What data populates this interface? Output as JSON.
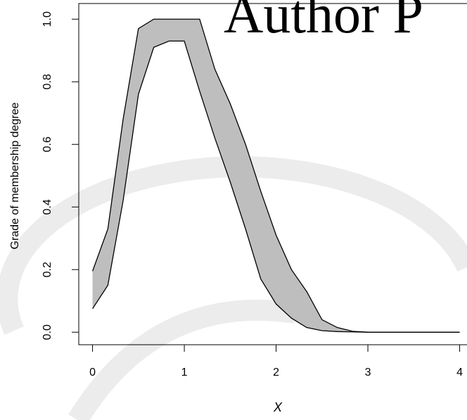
{
  "chart_data": {
    "type": "band",
    "watermark": "Author P",
    "xlabel": "X",
    "ylabel": "Grade of membership degree",
    "x": [
      0,
      0.167,
      0.333,
      0.5,
      0.667,
      0.833,
      1,
      1.167,
      1.333,
      1.5,
      1.667,
      1.833,
      2,
      2.167,
      2.333,
      2.5,
      2.667,
      2.833,
      3,
      3.167,
      3.333,
      3.5,
      3.667,
      3.833,
      4
    ],
    "series": [
      {
        "color": "#000000",
        "values": [
          0.195,
          0.33,
          0.68,
          0.97,
          1.0,
          1.0,
          1.0,
          1.0,
          0.84,
          0.73,
          0.6,
          0.45,
          0.31,
          0.2,
          0.13,
          0.04,
          0.015,
          0.003,
          0,
          0,
          0,
          0,
          0,
          0,
          0
        ]
      },
      {
        "color": "#000000",
        "values": [
          0.075,
          0.15,
          0.42,
          0.76,
          0.91,
          0.93,
          0.93,
          0.77,
          0.62,
          0.48,
          0.33,
          0.17,
          0.09,
          0.045,
          0.015,
          0.005,
          0.002,
          0.001,
          0,
          0,
          0,
          0,
          0,
          0,
          0
        ]
      }
    ],
    "fill": "#bebebe",
    "xlim": [
      -0.15,
      4.08
    ],
    "ylim": [
      -0.04,
      1.05
    ],
    "xticks": [
      0,
      1,
      2,
      3,
      4
    ],
    "yticks": [
      {
        "value": 0,
        "label": "0.0"
      },
      0.2,
      0.4,
      0.6,
      0.8,
      {
        "value": 1,
        "label": "1.0"
      }
    ]
  }
}
